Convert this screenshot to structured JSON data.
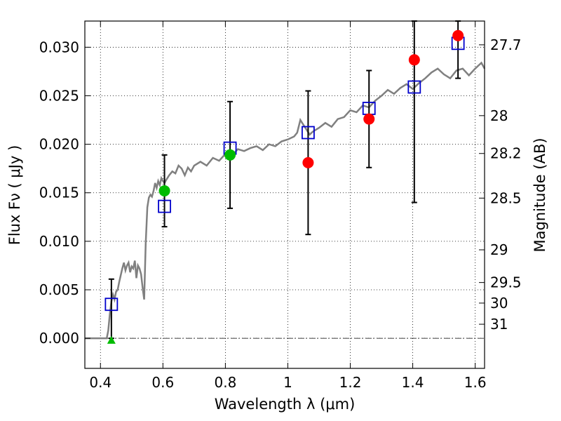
{
  "chart_data": {
    "type": "scatter",
    "xlabel": "Wavelength  λ (μm)",
    "ylabel": "Flux  Fν  ( μJy )",
    "ylabel_right": "Magnitude (AB)",
    "xlim": [
      0.35,
      1.63
    ],
    "ylim": [
      -0.0031,
      0.0327
    ],
    "x_ticks": [
      0.4,
      0.6,
      0.8,
      1.0,
      1.2,
      1.4,
      1.6
    ],
    "x_tick_labels": [
      "0.4",
      "0.6",
      "0.8",
      "1",
      "1.2",
      "1.4",
      "1.6"
    ],
    "y_ticks": [
      0.0,
      0.005,
      0.01,
      0.015,
      0.02,
      0.025,
      0.03
    ],
    "y_tick_labels": [
      "0.000",
      "0.005",
      "0.010",
      "0.015",
      "0.020",
      "0.025",
      "0.030"
    ],
    "right_ticks": [
      {
        "label": "27.7",
        "flux": 0.03025
      },
      {
        "label": "28",
        "flux": 0.02295
      },
      {
        "label": "28.2",
        "flux": 0.01905
      },
      {
        "label": "28.5",
        "flux": 0.01445
      },
      {
        "label": "29",
        "flux": 0.00912
      },
      {
        "label": "29.5",
        "flux": 0.00575
      },
      {
        "label": "30",
        "flux": 0.00363
      },
      {
        "label": "31",
        "flux": 0.00145
      }
    ],
    "grid": true,
    "dash_dot_line_y": 0.0,
    "colors": {
      "model": "#808080",
      "detected": "#00bb00",
      "upper": "#ff0000",
      "model_photometry": "#0000cc",
      "error_bar": "#000000"
    },
    "series": [
      {
        "kind": "model_spectrum",
        "x": [
          0.35,
          0.39,
          0.4,
          0.41,
          0.42,
          0.425,
          0.43,
          0.435,
          0.44,
          0.445,
          0.45,
          0.455,
          0.46,
          0.47,
          0.475,
          0.48,
          0.485,
          0.49,
          0.495,
          0.5,
          0.505,
          0.51,
          0.515,
          0.52,
          0.525,
          0.53,
          0.535,
          0.54,
          0.545,
          0.55,
          0.555,
          0.56,
          0.565,
          0.57,
          0.575,
          0.58,
          0.585,
          0.59,
          0.595,
          0.6,
          0.605,
          0.61,
          0.62,
          0.63,
          0.64,
          0.65,
          0.66,
          0.67,
          0.68,
          0.69,
          0.7,
          0.72,
          0.74,
          0.76,
          0.78,
          0.8,
          0.82,
          0.84,
          0.86,
          0.88,
          0.9,
          0.92,
          0.94,
          0.96,
          0.98,
          1.0,
          1.02,
          1.03,
          1.04,
          1.05,
          1.06,
          1.07,
          1.08,
          1.1,
          1.12,
          1.14,
          1.16,
          1.18,
          1.2,
          1.22,
          1.24,
          1.26,
          1.28,
          1.3,
          1.32,
          1.34,
          1.36,
          1.38,
          1.4,
          1.42,
          1.44,
          1.46,
          1.48,
          1.5,
          1.52,
          1.54,
          1.56,
          1.58,
          1.6,
          1.62,
          1.63
        ],
        "y": [
          0.0,
          0.0,
          0.0,
          0.0,
          0.0,
          0.0008,
          0.0025,
          0.0038,
          0.0045,
          0.004,
          0.0048,
          0.005,
          0.0058,
          0.0072,
          0.0078,
          0.007,
          0.0075,
          0.0078,
          0.0068,
          0.0074,
          0.0072,
          0.008,
          0.0062,
          0.0075,
          0.0072,
          0.0066,
          0.0052,
          0.004,
          0.0098,
          0.0135,
          0.0145,
          0.0148,
          0.0146,
          0.0152,
          0.016,
          0.0155,
          0.0162,
          0.0158,
          0.0165,
          0.0162,
          0.016,
          0.0163,
          0.0168,
          0.0172,
          0.017,
          0.0178,
          0.0175,
          0.0168,
          0.0176,
          0.0172,
          0.0178,
          0.0182,
          0.0178,
          0.0186,
          0.0183,
          0.019,
          0.0188,
          0.0195,
          0.0193,
          0.0196,
          0.0198,
          0.0194,
          0.02,
          0.0198,
          0.0203,
          0.0205,
          0.0208,
          0.0212,
          0.0225,
          0.022,
          0.0215,
          0.021,
          0.0213,
          0.0217,
          0.0222,
          0.0218,
          0.0226,
          0.0228,
          0.0235,
          0.0233,
          0.024,
          0.0238,
          0.0245,
          0.025,
          0.0256,
          0.0252,
          0.0258,
          0.0262,
          0.0257,
          0.0263,
          0.0268,
          0.0274,
          0.0278,
          0.0272,
          0.0268,
          0.0276,
          0.0278,
          0.0271,
          0.0278,
          0.0284,
          0.0278
        ]
      },
      {
        "kind": "detection",
        "x": [
          0.605,
          0.815
        ],
        "y": [
          0.0152,
          0.0189
        ],
        "yerr_low": [
          0.0037,
          0.0055
        ],
        "yerr_high": [
          0.0037,
          0.0055
        ]
      },
      {
        "kind": "detection_triangle",
        "x": [
          0.435
        ],
        "y": [
          -0.0002
        ]
      },
      {
        "kind": "nondetection",
        "x": [
          1.065,
          1.26,
          1.405,
          1.545
        ],
        "y": [
          0.0181,
          0.0226,
          0.0287,
          0.0312
        ],
        "yerr_low": [
          0.0074,
          0.005,
          0.0147,
          0.0044
        ],
        "yerr_high": [
          0.0074,
          0.005,
          0.0043,
          0.0015
        ]
      },
      {
        "kind": "model_photometry",
        "x": [
          0.435,
          0.605,
          0.815,
          1.065,
          1.26,
          1.405,
          1.545
        ],
        "y": [
          0.0035,
          0.0136,
          0.0196,
          0.0212,
          0.0237,
          0.0259,
          0.0304
        ]
      },
      {
        "kind": "error_bar_only",
        "x": [
          0.435
        ],
        "y_low": [
          0.0
        ],
        "y_high": [
          0.0061
        ]
      }
    ]
  }
}
